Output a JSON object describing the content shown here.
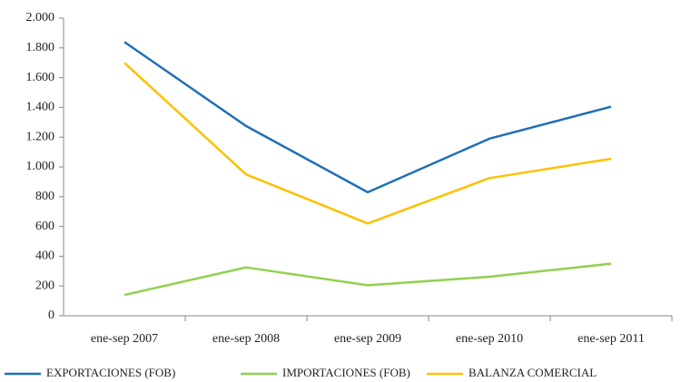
{
  "chart_data": {
    "type": "line",
    "categories": [
      "ene-sep 2007",
      "ene-sep 2008",
      "ene-sep 2009",
      "ene-sep 2010",
      "ene-sep 2011"
    ],
    "series": [
      {
        "name": "EXPORTACIONES (FOB)",
        "color": "#1f6fb8",
        "values": [
          1840,
          1275,
          830,
          1190,
          1405
        ]
      },
      {
        "name": "IMPORTACIONES (FOB)",
        "color": "#92d050",
        "values": [
          140,
          325,
          205,
          262,
          350
        ]
      },
      {
        "name": "BALANZA COMERCIAL",
        "color": "#ffc000",
        "values": [
          1700,
          950,
          620,
          925,
          1055
        ]
      }
    ],
    "ylim": [
      0,
      2000
    ],
    "yticks": [
      0,
      200,
      400,
      600,
      800,
      {
        "value": 1000,
        "label": "1.000"
      },
      {
        "value": 1200,
        "label": "1.200"
      },
      {
        "value": 1400,
        "label": "1.400"
      },
      {
        "value": 1600,
        "label": "1.600"
      },
      {
        "value": 1800,
        "label": "1.800"
      },
      {
        "value": 2000,
        "label": "2.000"
      }
    ],
    "grid": false,
    "legend": "bottom"
  }
}
